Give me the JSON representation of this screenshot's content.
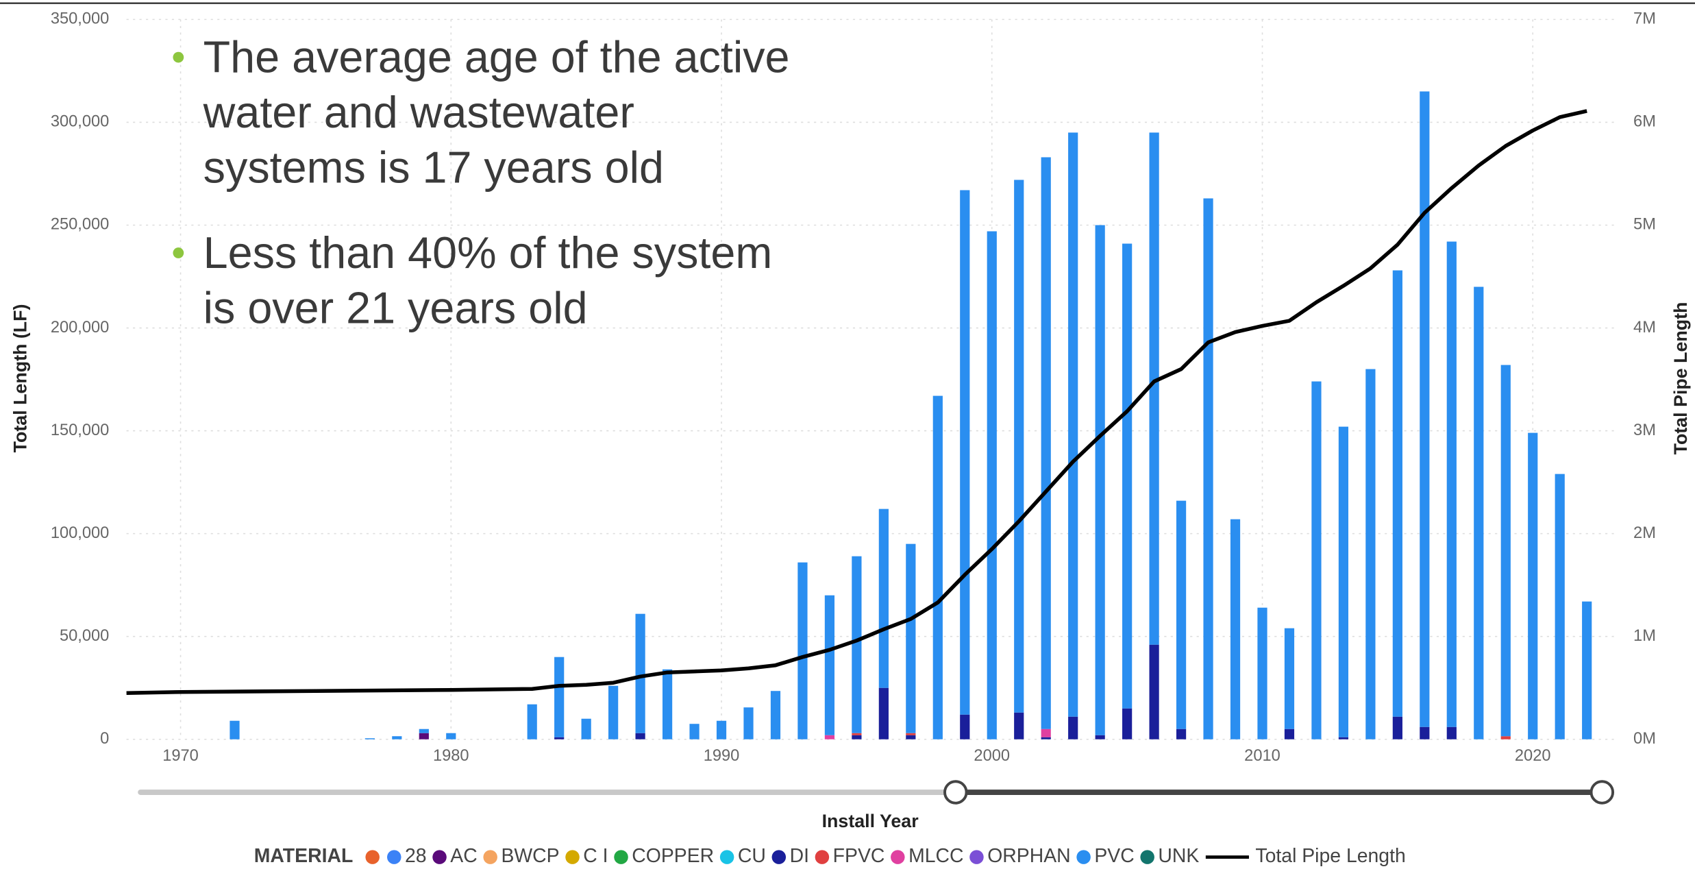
{
  "chart_data": {
    "type": "bar",
    "stacked": true,
    "x_label": "Install Year",
    "y_label": "Total Length (LF)",
    "y2_label": "Total Pipe Length",
    "legend_title": "MATERIAL",
    "grid": true,
    "xlim": [
      1968,
      2023
    ],
    "xticks": [
      1970,
      1980,
      1990,
      2000,
      2010,
      2020
    ],
    "ylim": [
      0,
      350000
    ],
    "yticks": [
      {
        "value": 0,
        "label": "0"
      },
      {
        "value": 50000,
        "label": "50,000"
      },
      {
        "value": 100000,
        "label": "100,000"
      },
      {
        "value": 150000,
        "label": "150,000"
      },
      {
        "value": 200000,
        "label": "200,000"
      },
      {
        "value": 250000,
        "label": "250,000"
      },
      {
        "value": 300000,
        "label": "300,000"
      },
      {
        "value": 350000,
        "label": "350,000"
      }
    ],
    "y2lim": [
      0,
      7000000
    ],
    "y2ticks": [
      {
        "value": 0,
        "label": "0M"
      },
      {
        "value": 1000000,
        "label": "1M"
      },
      {
        "value": 2000000,
        "label": "2M"
      },
      {
        "value": 3000000,
        "label": "3M"
      },
      {
        "value": 4000000,
        "label": "4M"
      },
      {
        "value": 5000000,
        "label": "5M"
      },
      {
        "value": 6000000,
        "label": "6M"
      },
      {
        "value": 7000000,
        "label": "7M"
      }
    ],
    "x": [
      1972,
      1977,
      1978,
      1979,
      1980,
      1983,
      1984,
      1985,
      1986,
      1987,
      1988,
      1989,
      1990,
      1991,
      1992,
      1993,
      1994,
      1995,
      1996,
      1997,
      1998,
      1999,
      2000,
      2001,
      2002,
      2003,
      2004,
      2005,
      2006,
      2007,
      2008,
      2009,
      2010,
      2011,
      2012,
      2013,
      2014,
      2015,
      2016,
      2017,
      2018,
      2019,
      2020,
      2021,
      2022
    ],
    "series": [
      {
        "color": "#e8622c"
      },
      {
        "name": "28",
        "color": "#3b82f6"
      },
      {
        "name": "AC",
        "color": "#5a0a7a",
        "values": [
          null,
          null,
          null,
          3000,
          null,
          null,
          null,
          null,
          null,
          null,
          null,
          null,
          null,
          null,
          null,
          null,
          null,
          null,
          null,
          null,
          null,
          null,
          null,
          null,
          null,
          null,
          null,
          null,
          null,
          null,
          null,
          null,
          null,
          null,
          null,
          null,
          null,
          null,
          null,
          null,
          null,
          null,
          null,
          null,
          null
        ]
      },
      {
        "name": "BWCP",
        "color": "#f4a460"
      },
      {
        "name": "C I",
        "color": "#d4a900"
      },
      {
        "name": "COPPER",
        "color": "#22a844"
      },
      {
        "name": "CU",
        "color": "#19c3e6"
      },
      {
        "name": "DI",
        "color": "#1a1f9a",
        "values": [
          null,
          null,
          null,
          null,
          null,
          null,
          1000,
          null,
          null,
          3000,
          null,
          null,
          null,
          null,
          null,
          null,
          null,
          2000,
          25000,
          2000,
          null,
          12000,
          null,
          13000,
          1000,
          11000,
          2000,
          15000,
          46000,
          5000,
          null,
          null,
          null,
          5000,
          null,
          1000,
          null,
          11000,
          6000,
          6000,
          null,
          null,
          null,
          null,
          null
        ]
      },
      {
        "name": "FPVC",
        "color": "#e04040",
        "values": [
          null,
          null,
          null,
          null,
          null,
          null,
          null,
          null,
          null,
          null,
          null,
          null,
          null,
          null,
          null,
          null,
          null,
          1000,
          null,
          1000,
          null,
          null,
          null,
          null,
          null,
          null,
          null,
          null,
          null,
          null,
          null,
          null,
          null,
          null,
          null,
          null,
          null,
          null,
          null,
          null,
          null,
          1500,
          null,
          null,
          null
        ]
      },
      {
        "name": "MLCC",
        "color": "#e040a0",
        "values": [
          null,
          null,
          null,
          null,
          null,
          null,
          null,
          null,
          null,
          null,
          null,
          null,
          null,
          null,
          null,
          null,
          2000,
          null,
          null,
          null,
          null,
          null,
          null,
          null,
          4000,
          null,
          null,
          null,
          null,
          null,
          null,
          null,
          null,
          null,
          null,
          null,
          null,
          null,
          null,
          null,
          null,
          null,
          null,
          null,
          null
        ]
      },
      {
        "name": "ORPHAN",
        "color": "#7b4fd6"
      },
      {
        "name": "PVC",
        "color": "#2a8ef0",
        "values": [
          9000,
          500,
          1500,
          2000,
          3000,
          17000,
          39000,
          10000,
          26000,
          58000,
          34000,
          7500,
          9000,
          15500,
          23500,
          86000,
          68000,
          86000,
          87000,
          92000,
          167000,
          255000,
          247000,
          259000,
          278000,
          284000,
          248000,
          226000,
          249000,
          111000,
          263000,
          107000,
          64000,
          49000,
          174000,
          151000,
          180000,
          217000,
          309000,
          236000,
          220000,
          180500,
          149000,
          129000,
          67000
        ]
      },
      {
        "name": "UNK",
        "color": "#13756d"
      },
      {
        "name": "Total Pipe Length",
        "type": "line",
        "axis": "y2",
        "color": "#000000",
        "x": [
          1968,
          1970,
          1975,
          1980,
          1983,
          1984,
          1985,
          1986,
          1987,
          1988,
          1989,
          1990,
          1991,
          1992,
          1993,
          1994,
          1995,
          1996,
          1997,
          1998,
          1999,
          2000,
          2001,
          2002,
          2003,
          2004,
          2005,
          2006,
          2007,
          2008,
          2009,
          2010,
          2011,
          2012,
          2013,
          2014,
          2015,
          2016,
          2017,
          2018,
          2019,
          2020,
          2021,
          2022
        ],
        "values": [
          450000,
          460000,
          470000,
          480000,
          490000,
          520000,
          530000,
          550000,
          610000,
          650000,
          660000,
          670000,
          690000,
          720000,
          800000,
          870000,
          960000,
          1070000,
          1170000,
          1330000,
          1600000,
          1850000,
          2120000,
          2410000,
          2700000,
          2950000,
          3190000,
          3480000,
          3600000,
          3860000,
          3960000,
          4020000,
          4070000,
          4250000,
          4410000,
          4580000,
          4810000,
          5120000,
          5360000,
          5580000,
          5770000,
          5920000,
          6050000,
          6110000
        ]
      }
    ]
  },
  "annotation": {
    "bullets": [
      " The average age of the active water and wastewater systems is 17 years old",
      "Less than 40% of the system is over 21 years old"
    ]
  }
}
